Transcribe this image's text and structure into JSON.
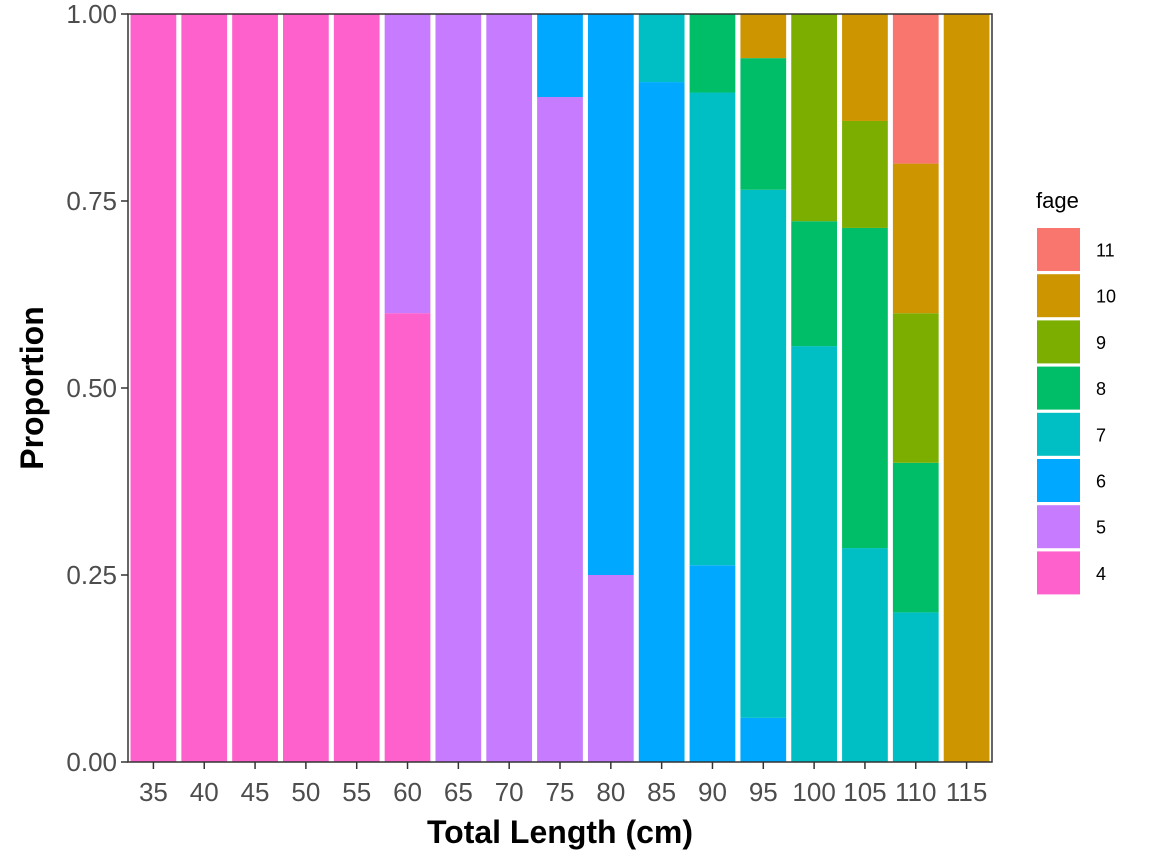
{
  "chart_data": {
    "type": "bar",
    "stacked": true,
    "xlabel": "Total Length (cm)",
    "ylabel": "Proportion",
    "ylim": [
      0,
      1
    ],
    "yticks": [
      "0.00",
      "0.25",
      "0.50",
      "0.75",
      "1.00"
    ],
    "ytick_values": [
      0,
      0.25,
      0.5,
      0.75,
      1
    ],
    "categories": [
      "35",
      "40",
      "45",
      "50",
      "55",
      "60",
      "65",
      "70",
      "75",
      "80",
      "85",
      "90",
      "95",
      "100",
      "105",
      "110",
      "115"
    ],
    "legend": {
      "title": "fage",
      "placement": "right",
      "order": [
        "11",
        "10",
        "9",
        "8",
        "7",
        "6",
        "5",
        "4"
      ]
    },
    "grid": false,
    "series": [
      {
        "name": "4",
        "color": "#FF61CC",
        "values": [
          1,
          1,
          1,
          1,
          1,
          0.6,
          0,
          0,
          0,
          0,
          0,
          0,
          0,
          0,
          0,
          0,
          0
        ]
      },
      {
        "name": "5",
        "color": "#C77CFF",
        "values": [
          0,
          0,
          0,
          0,
          0,
          0.4,
          1,
          1,
          0.889,
          0.25,
          0,
          0,
          0,
          0,
          0,
          0,
          0
        ]
      },
      {
        "name": "6",
        "color": "#00A9FF",
        "values": [
          0,
          0,
          0,
          0,
          0,
          0,
          0,
          0,
          0.111,
          0.75,
          0.909,
          0.263,
          0.059,
          0,
          0,
          0,
          0
        ]
      },
      {
        "name": "7",
        "color": "#00BFC4",
        "values": [
          0,
          0,
          0,
          0,
          0,
          0,
          0,
          0,
          0,
          0,
          0.091,
          0.632,
          0.706,
          0.556,
          0.286,
          0.2,
          0
        ]
      },
      {
        "name": "8",
        "color": "#00BE67",
        "values": [
          0,
          0,
          0,
          0,
          0,
          0,
          0,
          0,
          0,
          0,
          0,
          0.105,
          0.176,
          0.167,
          0.428,
          0.2,
          0
        ]
      },
      {
        "name": "9",
        "color": "#7CAE00",
        "values": [
          0,
          0,
          0,
          0,
          0,
          0,
          0,
          0,
          0,
          0,
          0,
          0,
          0,
          0.277,
          0.143,
          0.2,
          0
        ]
      },
      {
        "name": "10",
        "color": "#CD9600",
        "values": [
          0,
          0,
          0,
          0,
          0,
          0,
          0,
          0,
          0,
          0,
          0,
          0,
          0.059,
          0,
          0.143,
          0.2,
          1
        ]
      },
      {
        "name": "11",
        "color": "#F8766D",
        "values": [
          0,
          0,
          0,
          0,
          0,
          0,
          0,
          0,
          0,
          0,
          0,
          0,
          0,
          0,
          0,
          0.2,
          0
        ]
      }
    ]
  }
}
